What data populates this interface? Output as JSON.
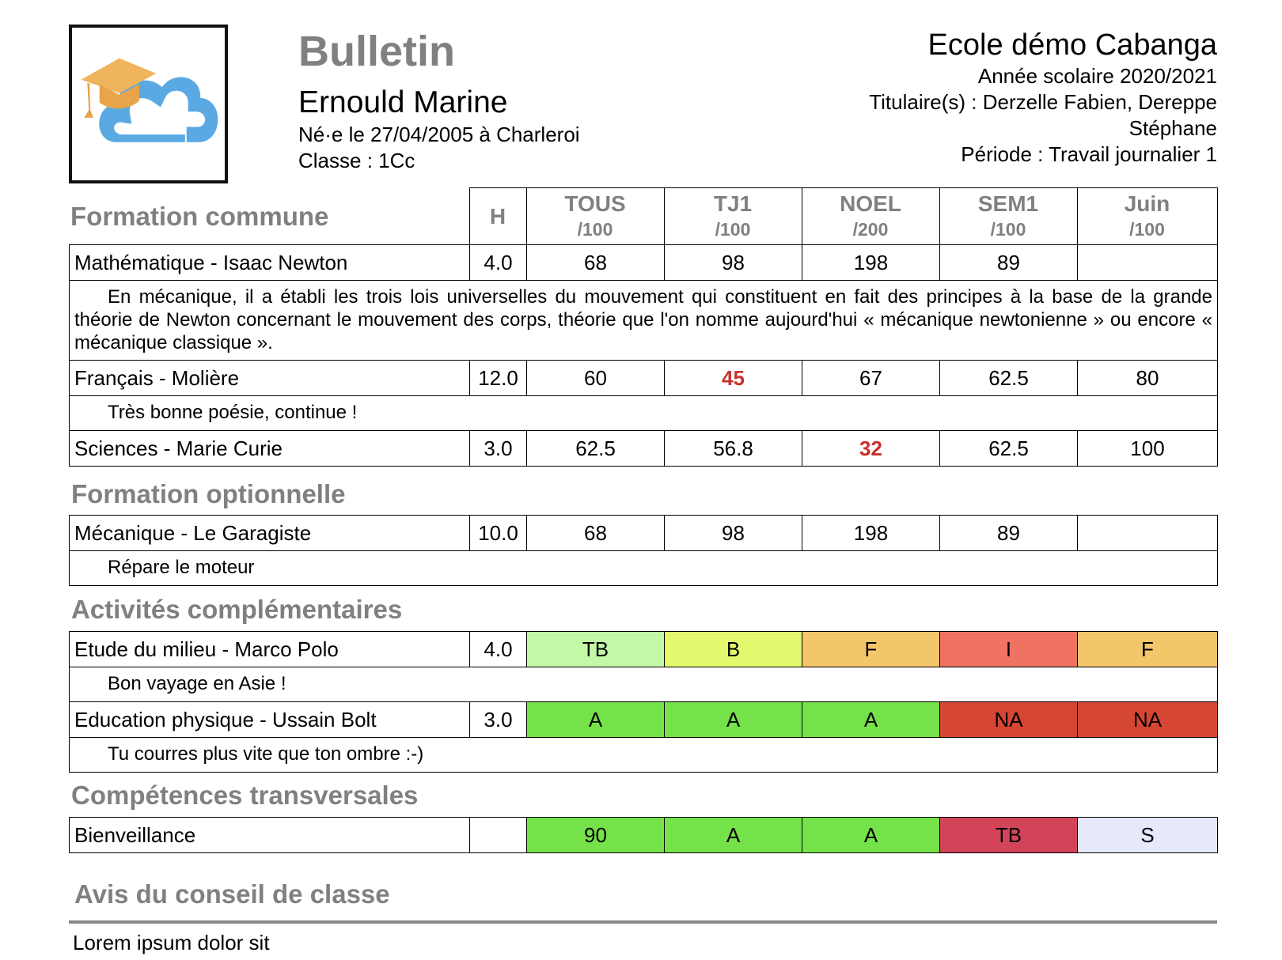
{
  "header": {
    "doc_title": "Bulletin",
    "student_name": "Ernould Marine",
    "birth_line": "Né·e le 27/04/2005 à Charleroi",
    "class_line": "Classe : 1Cc",
    "school_name": "Ecole démo Cabanga",
    "school_year": "Année scolaire 2020/2021",
    "titulaires": "Titulaire(s) : Derzelle Fabien, Dereppe Stéphane",
    "periode": "Période : Travail journalier 1",
    "logo_icon": "cloud-graduation-cap-icon"
  },
  "columns": {
    "h": "H",
    "periods": [
      {
        "name": "TOUS",
        "den": "/100"
      },
      {
        "name": "TJ1",
        "den": "/100"
      },
      {
        "name": "NOEL",
        "den": "/200"
      },
      {
        "name": "SEM1",
        "den": "/100"
      },
      {
        "name": "Juin",
        "den": "/100"
      }
    ]
  },
  "sections": {
    "commune": {
      "title": "Formation commune",
      "rows": [
        {
          "subject": "Mathématique - Isaac Newton",
          "h": "4.0",
          "values": [
            "68",
            "98",
            "198",
            "89",
            ""
          ],
          "comment": "En mécanique, il a établi les trois lois universelles du mouvement qui constituent en fait des principes à la base de la grande théorie de Newton concernant le mouvement des corps, théorie que l'on nomme aujourd'hui « mécanique newtonienne » ou encore « mécanique classique »."
        },
        {
          "subject": "Français - Molière",
          "h": "12.0",
          "values": [
            "60",
            "45",
            "67",
            "62.5",
            "80"
          ],
          "comment": "Très bonne poésie, continue !"
        },
        {
          "subject": "Sciences - Marie Curie",
          "h": "3.0",
          "values": [
            "62.5",
            "56.8",
            "32",
            "62.5",
            "100"
          ]
        }
      ]
    },
    "optionnelle": {
      "title": "Formation optionnelle",
      "rows": [
        {
          "subject": "Mécanique - Le Garagiste",
          "h": "10.0",
          "values": [
            "68",
            "98",
            "198",
            "89",
            ""
          ],
          "comment": "Répare le moteur"
        }
      ]
    },
    "activites": {
      "title": "Activités complémentaires",
      "rows": [
        {
          "subject": "Etude du milieu - Marco Polo",
          "h": "4.0",
          "values": [
            "TB",
            "B",
            "F",
            "I",
            "F"
          ],
          "colors": [
            "#c2f8a6",
            "#e4f86e",
            "#f4c66a",
            "#ef7263",
            "#f4c66a"
          ],
          "comment": "Bon vayage en Asie !"
        },
        {
          "subject": "Education physique - Ussain Bolt",
          "h": "3.0",
          "values": [
            "A",
            "A",
            "A",
            "NA",
            "NA"
          ],
          "colors": [
            "#76e24a",
            "#76e24a",
            "#76e24a",
            "#d64635",
            "#d64635"
          ],
          "comment": "Tu courres plus vite que ton ombre :-)"
        }
      ]
    },
    "competences": {
      "title": "Compétences transversales",
      "rows": [
        {
          "subject": "Bienveillance",
          "h": "",
          "values": [
            "90",
            "A",
            "A",
            "TB",
            "S"
          ],
          "colors": [
            "#76e24a",
            "#76e24a",
            "#76e24a",
            "#d34459",
            "#e6e9fa"
          ]
        }
      ]
    }
  },
  "failing_color": "#c9302c",
  "avis": {
    "title": "Avis du conseil de classe",
    "text": "Lorem ipsum dolor sit"
  }
}
